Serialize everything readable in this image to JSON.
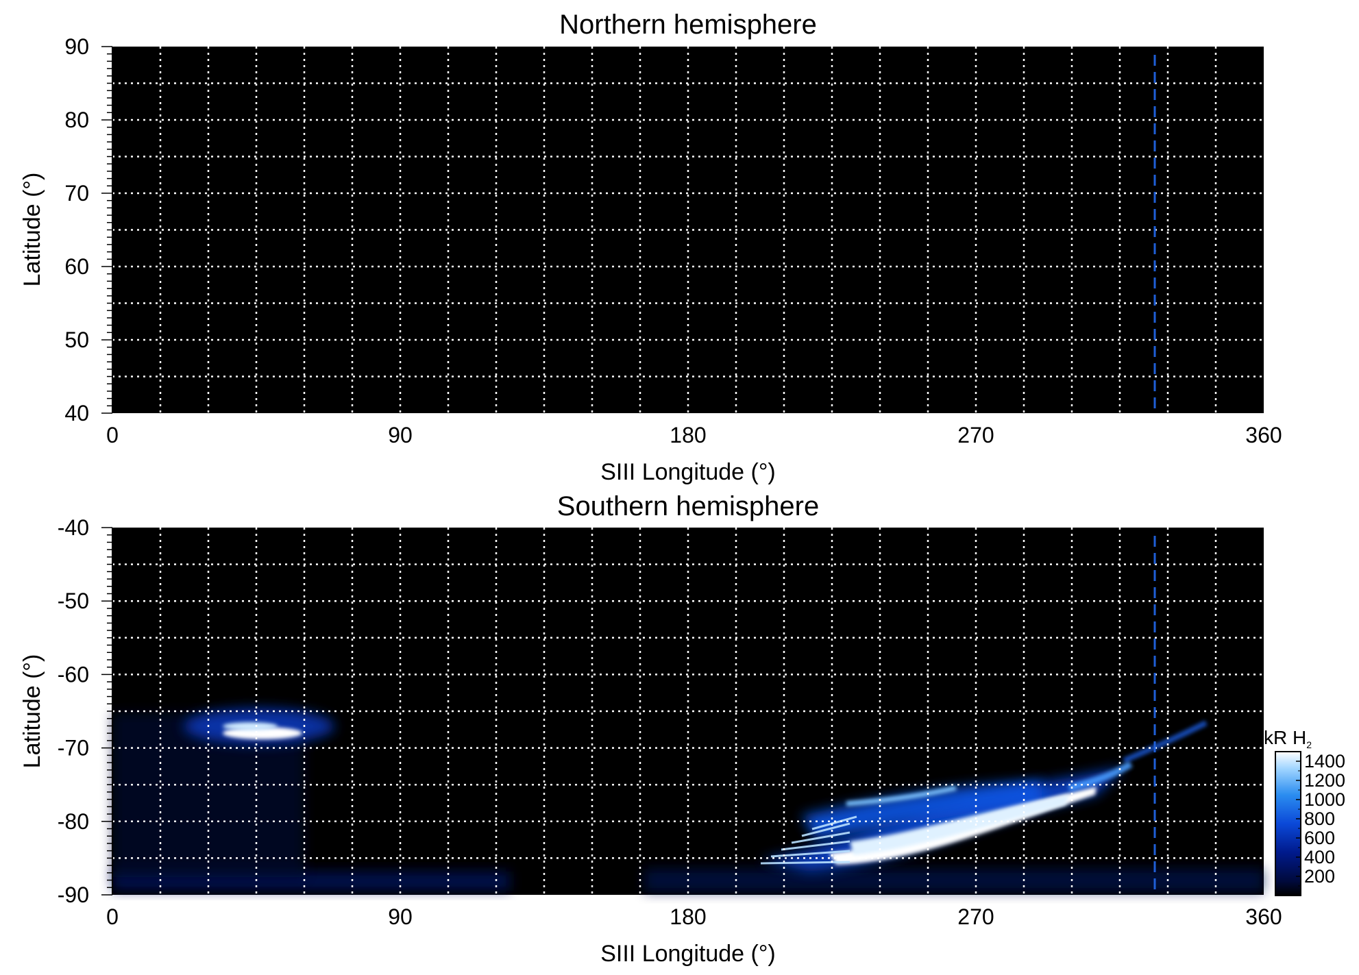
{
  "chart_data": [
    {
      "type": "heatmap",
      "title": "Northern hemisphere",
      "xlabel": "SIII Longitude (°)",
      "ylabel": "Latitude (°)",
      "xlim": [
        0,
        360
      ],
      "ylim": [
        40,
        90
      ],
      "xticks": [
        "0",
        "90",
        "180",
        "270",
        "360"
      ],
      "xtick_values": [
        0,
        90,
        180,
        270,
        360
      ],
      "yticks": [
        "90",
        "80",
        "70",
        "60",
        "50",
        "40"
      ],
      "ytick_values": [
        90,
        80,
        70,
        60,
        50,
        40
      ],
      "grid": true,
      "grid_color": "#ffffff",
      "background_color": "#000000",
      "grid_lon_step": 15,
      "grid_lat_step": 5,
      "marker_line": {
        "longitude": 326,
        "style": "dashed",
        "color": "#1f5fd8"
      },
      "features": []
    },
    {
      "type": "heatmap",
      "title": "Southern hemisphere",
      "xlabel": "SIII Longitude (°)",
      "ylabel": "Latitude (°)",
      "xlim": [
        0,
        360
      ],
      "ylim": [
        -90,
        -40
      ],
      "xticks": [
        "0",
        "90",
        "180",
        "270",
        "360"
      ],
      "xtick_values": [
        0,
        90,
        180,
        270,
        360
      ],
      "yticks": [
        "-40",
        "-50",
        "-60",
        "-70",
        "-80",
        "-90"
      ],
      "ytick_values": [
        -40,
        -50,
        -60,
        -70,
        -80,
        -90
      ],
      "grid": true,
      "grid_color": "#ffffff",
      "background_color": "#000000",
      "grid_lon_step": 15,
      "grid_lat_step": 5,
      "marker_line": {
        "longitude": 326,
        "style": "dashed",
        "color": "#1f5fd8"
      },
      "features": [
        {
          "name": "emission-patch-west",
          "lon": [
            30,
            60
          ],
          "lat": [
            -66,
            -70
          ],
          "peak_kR": 1400
        },
        {
          "name": "main-auroral-arc",
          "lon": [
            200,
            320
          ],
          "lat": [
            -74,
            -86
          ],
          "peak_kR": 1400
        },
        {
          "name": "faint-arc-upper",
          "lon": [
            240,
            290
          ],
          "lat": [
            -75,
            -78
          ],
          "peak_kR": 900
        },
        {
          "name": "faint-streaks-high-lon",
          "lon": [
            320,
            345
          ],
          "lat": [
            -66,
            -72
          ],
          "peak_kR": 500
        },
        {
          "name": "faint-low-latitude-band",
          "lon": [
            0,
            360
          ],
          "lat": [
            -86,
            -90
          ],
          "peak_kR": 300
        }
      ],
      "colorbar": {
        "label_main": "kR H",
        "label_sub": "2",
        "ticks": [
          "1400",
          "1200",
          "1000",
          "800",
          "600",
          "400",
          "200"
        ],
        "tick_values": [
          1400,
          1200,
          1000,
          800,
          600,
          400,
          200
        ],
        "range": [
          0,
          1500
        ],
        "colors": [
          "#000000",
          "#000a3c",
          "#001a8c",
          "#0b49d8",
          "#2b8df0",
          "#9fd4ff",
          "#ffffff"
        ]
      }
    }
  ]
}
